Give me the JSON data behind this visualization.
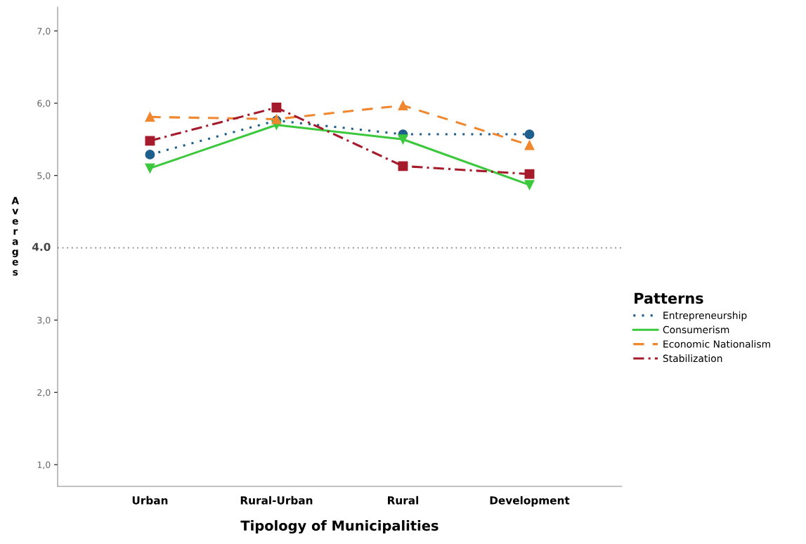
{
  "chart_data": {
    "type": "line",
    "xlabel": "Tipology of Municipalities",
    "ylabel": "Averages",
    "legend_title": "Patterns",
    "categories": [
      "Urban",
      "Rural-Urban",
      "Rural",
      "Development"
    ],
    "series": [
      {
        "name": "Entrepreneurship",
        "color": "#1f5f8b",
        "marker": "circle",
        "line_style": "dotted",
        "values": [
          5.29,
          5.76,
          5.57,
          5.57
        ]
      },
      {
        "name": "Consumerism",
        "color": "#3cc83c",
        "marker": "triangle_down",
        "line_style": "solid",
        "values": [
          5.1,
          5.7,
          5.5,
          4.87
        ]
      },
      {
        "name": "Economic Nationalism",
        "color": "#f0862e",
        "marker": "triangle",
        "line_style": "dashed",
        "values": [
          5.81,
          5.78,
          5.97,
          5.42
        ]
      },
      {
        "name": "Stabilization",
        "color": "#a51b2b",
        "marker": "square",
        "line_style": "dashdot",
        "values": [
          5.48,
          5.94,
          5.13,
          5.02
        ]
      }
    ],
    "ylim": [
      0.7,
      7.33
    ],
    "yticks": [
      {
        "value": 1,
        "label": "1,0"
      },
      {
        "value": 2,
        "label": "2,0"
      },
      {
        "value": 3,
        "label": "3,0"
      },
      {
        "value": 5,
        "label": "5,0"
      },
      {
        "value": 6,
        "label": "6,0"
      },
      {
        "value": 7,
        "label": "7,0"
      }
    ],
    "ref_lines": [
      {
        "axis": "y",
        "value": 4.0,
        "label": "4.0",
        "color": "#777777",
        "line_style": "dotted"
      }
    ],
    "grid": false,
    "legend": "right"
  }
}
